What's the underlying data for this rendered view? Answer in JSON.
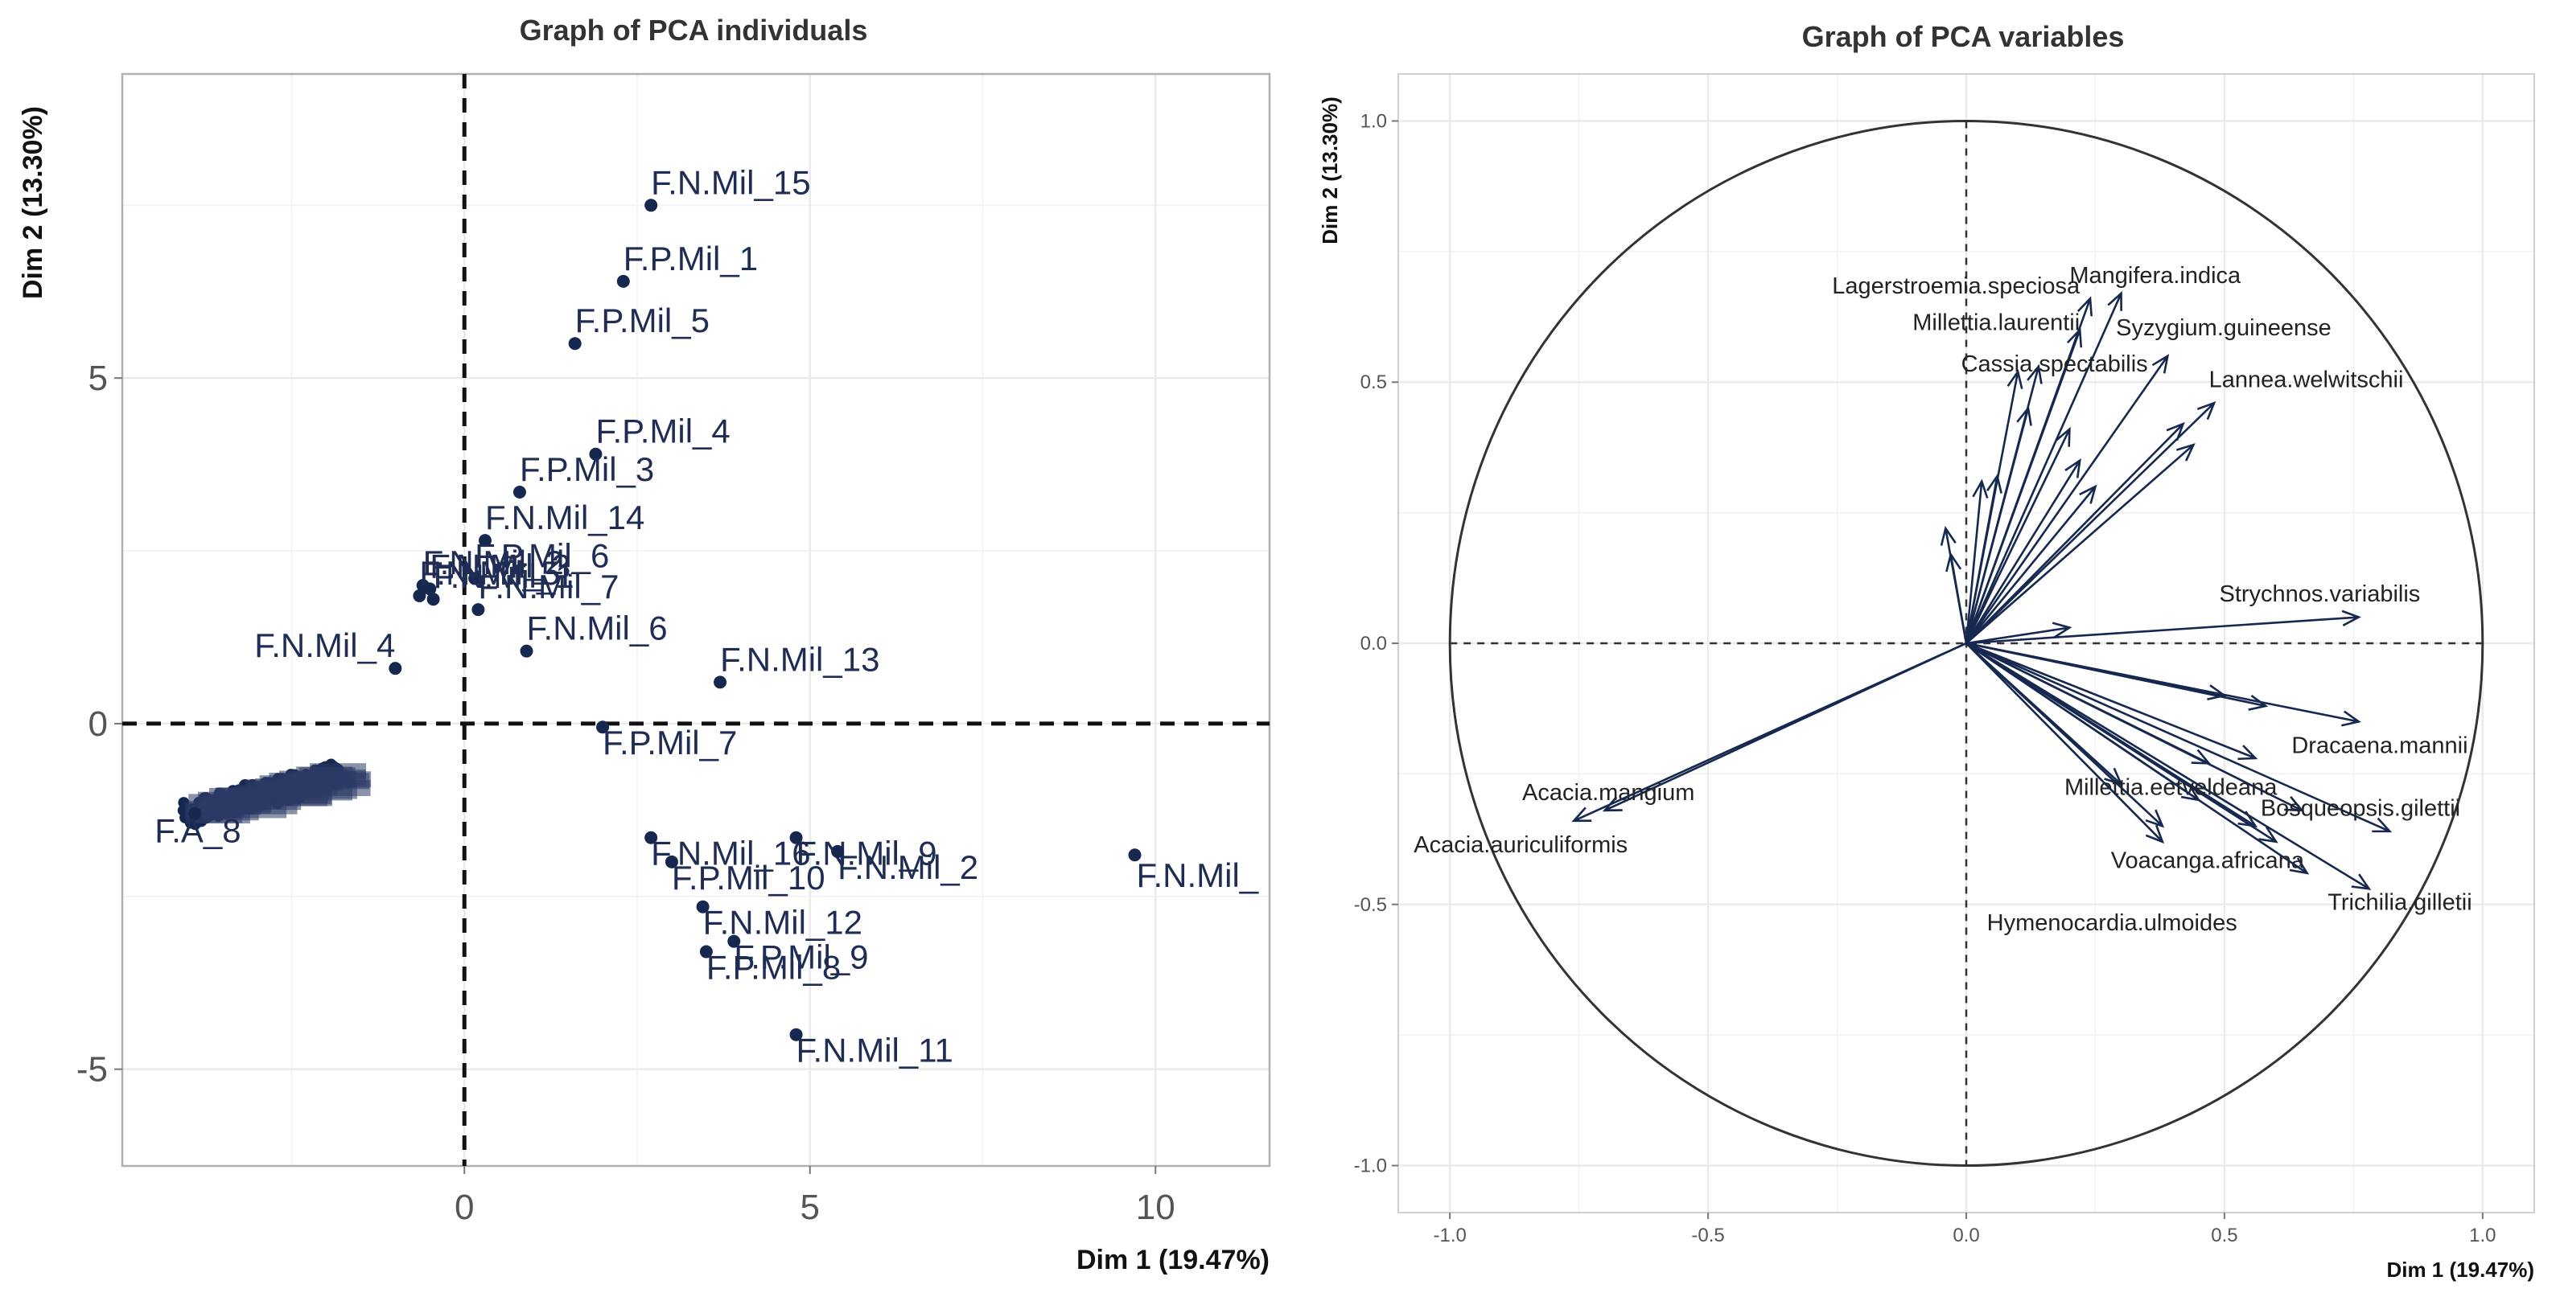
{
  "chart_data": [
    {
      "type": "scatter",
      "title": "Graph of PCA individuals",
      "xlabel": "Dim 1 (19.47%)",
      "ylabel": "Dim 2 (13.30%)",
      "xlim": [
        -4.95,
        11.65
      ],
      "ylim": [
        -6.4,
        9.4
      ],
      "x_ticks": [
        0,
        5,
        10
      ],
      "y_ticks": [
        -5,
        0,
        5
      ],
      "grid": true,
      "point_color": "#16284f",
      "points": [
        {
          "label": "F.N.Mil_15",
          "x": 2.7,
          "y": 7.5
        },
        {
          "label": "F.P.Mil_1",
          "x": 2.3,
          "y": 6.4
        },
        {
          "label": "F.P.Mil_5",
          "x": 1.6,
          "y": 5.5
        },
        {
          "label": "F.P.Mil_4",
          "x": 1.9,
          "y": 3.9
        },
        {
          "label": "F.P.Mil_3",
          "x": 0.8,
          "y": 3.35
        },
        {
          "label": "F.N.Mil_14",
          "x": 0.3,
          "y": 2.65
        },
        {
          "label": "F.P.Mil_6",
          "x": 0.15,
          "y": 2.1
        },
        {
          "label": "F.N.Mil_7",
          "x": 0.2,
          "y": 1.65
        },
        {
          "label": "F.N.Mil_6",
          "x": 0.9,
          "y": 1.05
        },
        {
          "label": "F.N.Mil_13",
          "x": 3.7,
          "y": 0.6
        },
        {
          "label": "F.P.Mil_7",
          "x": 2.0,
          "y": -0.05
        },
        {
          "label": "F.N.Mil_4",
          "x": -1.0,
          "y": 0.8
        },
        {
          "label": "F.N.Mil_2",
          "x": -0.6,
          "y": 2.0
        },
        {
          "label": "F.N.Mil_3",
          "x": -0.5,
          "y": 1.95
        },
        {
          "label": "F.N.Mil_5",
          "x": -0.65,
          "y": 1.85
        },
        {
          "label": "F.N.Mil_1",
          "x": -0.45,
          "y": 1.8
        },
        {
          "label": "F.N.Mil_16",
          "x": 2.7,
          "y": -1.65
        },
        {
          "label": "F.P.Mil_10",
          "x": 3.0,
          "y": -2.0
        },
        {
          "label": "F.N.Mil_9",
          "x": 4.8,
          "y": -1.65
        },
        {
          "label": "F.N.Mil_2",
          "x": 5.4,
          "y": -1.85
        },
        {
          "label": "F.N.Mil_12",
          "x": 3.45,
          "y": -2.65
        },
        {
          "label": "F.P.Mil_9",
          "x": 3.9,
          "y": -3.15
        },
        {
          "label": "F.P.Mil_8",
          "x": 3.5,
          "y": -3.3
        },
        {
          "label": "F.N.Mil_11",
          "x": 4.8,
          "y": -4.5
        },
        {
          "label": "F.N.Mil_",
          "x": 9.7,
          "y": -1.9
        },
        {
          "label": "F.A_8",
          "x": -3.9,
          "y": -1.3
        }
      ]
    },
    {
      "type": "scatter",
      "title": "Graph of PCA variables",
      "xlabel": "Dim 1 (19.47%)",
      "ylabel": "Dim 2 (13.30%)",
      "xlim": [
        -1.1,
        1.1
      ],
      "ylim": [
        -1.09,
        1.09
      ],
      "x_ticks": [
        -1.0,
        -0.5,
        0.0,
        0.5,
        1.0
      ],
      "y_ticks": [
        -1.0,
        -0.5,
        0.0,
        0.5,
        1.0
      ],
      "x_tick_labels": [
        "-1.0",
        "-0.5",
        "0.0",
        "0.5",
        "1.0"
      ],
      "y_tick_labels": [
        "-1.0",
        "-0.5",
        "0.0",
        "0.5",
        "1.0"
      ],
      "grid": true,
      "unit_circle": true,
      "arrow_color": "#16284f",
      "vectors": [
        {
          "label": "Lagerstroemia.speciosa",
          "x": 0.24,
          "y": 0.66
        },
        {
          "label": "Mangifera.indica",
          "x": 0.3,
          "y": 0.67
        },
        {
          "label": "Millettia.laurentii",
          "x": 0.22,
          "y": 0.6
        },
        {
          "label": "Syzygium.guineense",
          "x": 0.39,
          "y": 0.55
        },
        {
          "label": "Cassia.spectabilis",
          "x": 0.14,
          "y": 0.53
        },
        {
          "label": "Lannea.welwitschii",
          "x": 0.48,
          "y": 0.46
        },
        {
          "label": "Strychnos.variabilis",
          "x": 0.76,
          "y": 0.05
        },
        {
          "label": "Dracaena.mannii",
          "x": 0.76,
          "y": -0.15
        },
        {
          "label": "Millettia.eetveldeana",
          "x": 0.56,
          "y": -0.22
        },
        {
          "label": "Bosqueopsis.gilettii",
          "x": 0.82,
          "y": -0.36
        },
        {
          "label": "Voacanga.africana",
          "x": 0.38,
          "y": -0.38
        },
        {
          "label": "Trichilia.gilletii",
          "x": 0.78,
          "y": -0.47
        },
        {
          "label": "Hymenocardia.ulmoides",
          "x": 0.66,
          "y": -0.44
        },
        {
          "label": "Acacia.mangium",
          "x": -0.7,
          "y": -0.32
        },
        {
          "label": "Acacia.auriculiformis",
          "x": -0.76,
          "y": -0.34
        }
      ]
    }
  ]
}
